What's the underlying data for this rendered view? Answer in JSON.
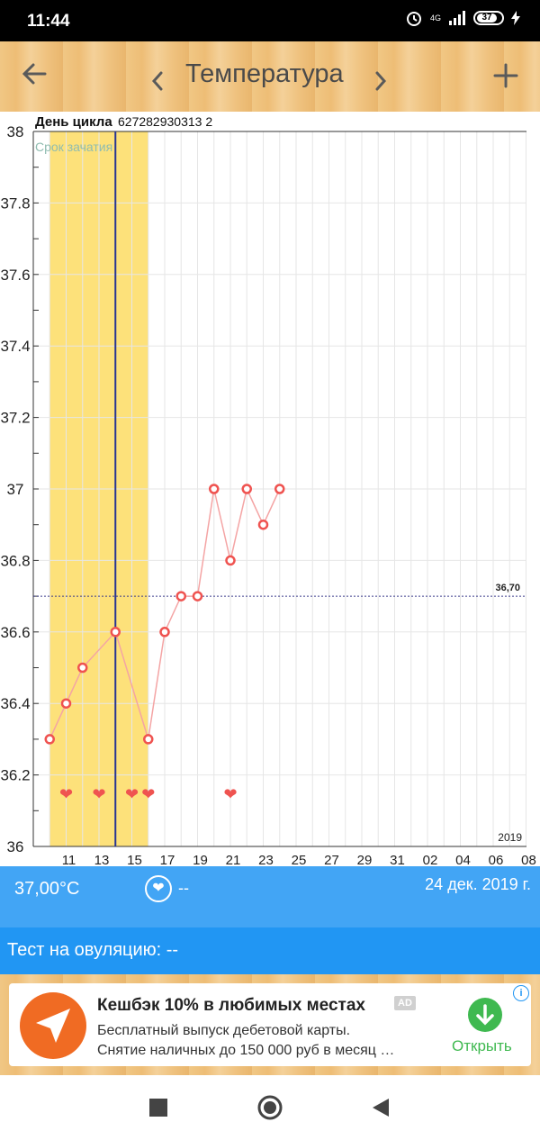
{
  "status_bar": {
    "time": "11:44",
    "network": "4G",
    "battery": "37"
  },
  "toolbar": {
    "title": "Температура",
    "back_icon": "arrow-left-icon",
    "prev_icon": "chevron-left-icon",
    "next_icon": "chevron-right-icon",
    "add_icon": "plus-icon"
  },
  "chart": {
    "cycle_day_label": "День цикла",
    "cycle_day_numbers": "627282930313 2",
    "conception_label": "Срок зачатия",
    "baseline_label": "36,70",
    "year_label": "2019",
    "colors": {
      "conception_band": "#fde17a",
      "line": "#f4a4a4",
      "marker": "#ef5350",
      "cursor": "#283593",
      "baseline": "#3a3a8a"
    }
  },
  "chart_data": {
    "type": "line",
    "x_tick_labels": [
      "11",
      "13",
      "15",
      "17",
      "19",
      "21",
      "23",
      "25",
      "27",
      "29",
      "31",
      "02",
      "04",
      "06",
      "08"
    ],
    "y_tick_labels": [
      "38",
      "37.8",
      "37.6",
      "37.4",
      "37.2",
      "37",
      "36.8",
      "36.6",
      "36.4",
      "36.2",
      "36"
    ],
    "ylim": [
      36,
      38
    ],
    "series": [
      {
        "x": [
          10,
          11,
          12,
          14,
          16,
          17,
          18,
          19,
          20,
          21,
          22,
          23,
          24
        ],
        "y": [
          36.3,
          36.4,
          36.5,
          36.6,
          36.3,
          36.6,
          36.7,
          36.7,
          37.0,
          36.8,
          37.0,
          36.9,
          37.0
        ]
      }
    ],
    "hearts_x": [
      11,
      13,
      15,
      16,
      21
    ],
    "baseline": 36.7,
    "selected_x": 14,
    "conception_window": [
      10,
      16
    ]
  },
  "info_bar": {
    "temperature": "37,00°C",
    "sex_value": "--",
    "date": "24 дек. 2019 г."
  },
  "ovulation": {
    "label": "Тест на овуляцию: --"
  },
  "ad": {
    "headline": "Кешбэк 10% в любимых местах",
    "badge": "AD",
    "line1": "Бесплатный выпуск дебетовой карты.",
    "line2": "Снятие наличных до 150 000 руб в месяц …",
    "cta": "Открыть"
  }
}
